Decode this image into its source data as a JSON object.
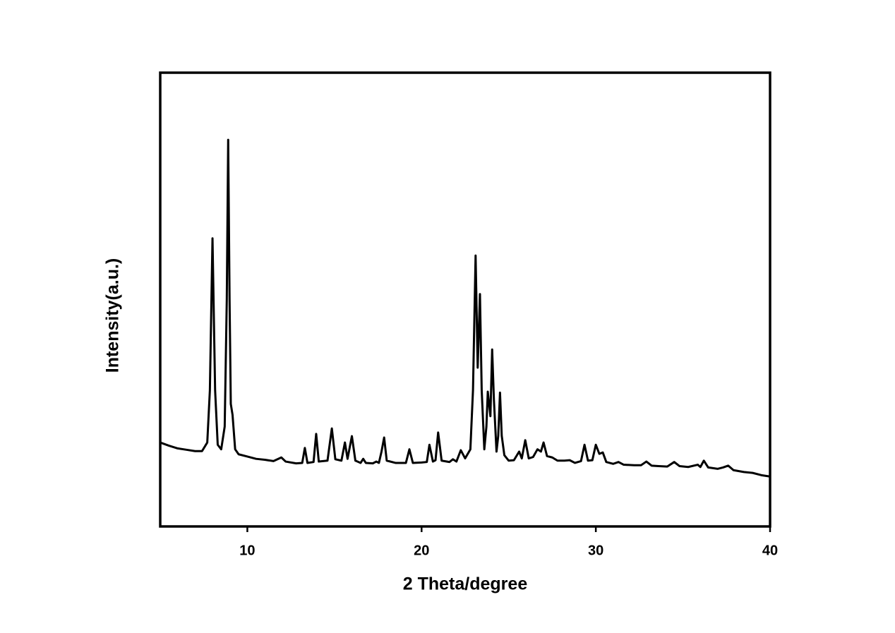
{
  "chart_data": {
    "type": "line",
    "x_label": "2 Theta/degree",
    "y_label": "Intensity(a.u.)",
    "color": "#000000",
    "xlim": [
      5,
      40
    ],
    "xticks": [
      10,
      20,
      30,
      40
    ],
    "ylim": [
      0,
      100
    ],
    "x": [
      5.0,
      5.5,
      6.0,
      6.5,
      7.0,
      7.4,
      7.7,
      7.85,
      8.0,
      8.15,
      8.3,
      8.5,
      8.7,
      8.82,
      8.9,
      8.98,
      9.05,
      9.15,
      9.3,
      9.5,
      10.0,
      10.5,
      11.0,
      11.5,
      11.95,
      12.2,
      12.8,
      13.15,
      13.3,
      13.45,
      13.8,
      13.95,
      14.1,
      14.6,
      14.85,
      15.05,
      15.4,
      15.6,
      15.75,
      16.0,
      16.2,
      16.5,
      16.65,
      16.8,
      17.2,
      17.4,
      17.55,
      17.7,
      17.85,
      18.0,
      18.5,
      19.1,
      19.3,
      19.5,
      20.0,
      20.3,
      20.45,
      20.65,
      20.8,
      20.95,
      21.15,
      21.6,
      21.8,
      22.0,
      22.25,
      22.5,
      22.8,
      22.95,
      23.1,
      23.22,
      23.35,
      23.45,
      23.6,
      23.72,
      23.8,
      23.95,
      24.05,
      24.15,
      24.3,
      24.4,
      24.5,
      24.6,
      24.75,
      25.0,
      25.3,
      25.6,
      25.75,
      25.95,
      26.15,
      26.4,
      26.65,
      26.85,
      27.0,
      27.2,
      27.5,
      27.8,
      28.2,
      28.5,
      28.8,
      29.15,
      29.35,
      29.55,
      29.8,
      30.0,
      30.2,
      30.4,
      30.6,
      31.0,
      31.3,
      31.6,
      32.2,
      32.6,
      32.9,
      33.2,
      33.6,
      34.1,
      34.5,
      34.8,
      35.3,
      35.85,
      36.0,
      36.2,
      36.45,
      37.0,
      37.3,
      37.6,
      37.9,
      38.5,
      39.0,
      39.5,
      40.0
    ],
    "values": [
      18.5,
      17.8,
      17.2,
      16.9,
      16.6,
      16.6,
      18.5,
      30,
      63.5,
      30,
      18,
      17,
      22,
      50,
      85.2,
      50,
      27,
      24.6,
      17,
      15.9,
      15.4,
      14.9,
      14.7,
      14.4,
      15.2,
      14.3,
      13.9,
      14,
      17.3,
      14,
      14.2,
      20.4,
      14.3,
      14.5,
      21.6,
      14.8,
      14.5,
      18.5,
      14.9,
      19.9,
      14.5,
      14,
      14.9,
      14,
      13.9,
      14.3,
      14,
      16.5,
      19.6,
      14.5,
      14,
      14,
      17,
      14,
      14.1,
      14.2,
      18,
      14.3,
      14.6,
      20.7,
      14.5,
      14.2,
      14.8,
      14.3,
      16.8,
      15,
      17,
      30,
      59.7,
      35,
      51.2,
      30,
      17,
      22,
      29.7,
      24.3,
      39,
      28,
      16.5,
      20,
      29.5,
      20,
      15.7,
      14.5,
      14.6,
      16.5,
      15,
      19,
      15,
      15.3,
      17,
      16.5,
      18.5,
      15.5,
      15.2,
      14.5,
      14.5,
      14.6,
      14,
      14.4,
      18,
      14.5,
      14.6,
      18,
      16,
      16.3,
      14.2,
      13.8,
      14.2,
      13.6,
      13.5,
      13.5,
      14.3,
      13.4,
      13.3,
      13.2,
      14.2,
      13.3,
      13.1,
      13.6,
      13.1,
      14.5,
      13,
      12.7,
      13,
      13.4,
      12.4,
      12,
      11.8,
      11.3,
      11
    ]
  }
}
